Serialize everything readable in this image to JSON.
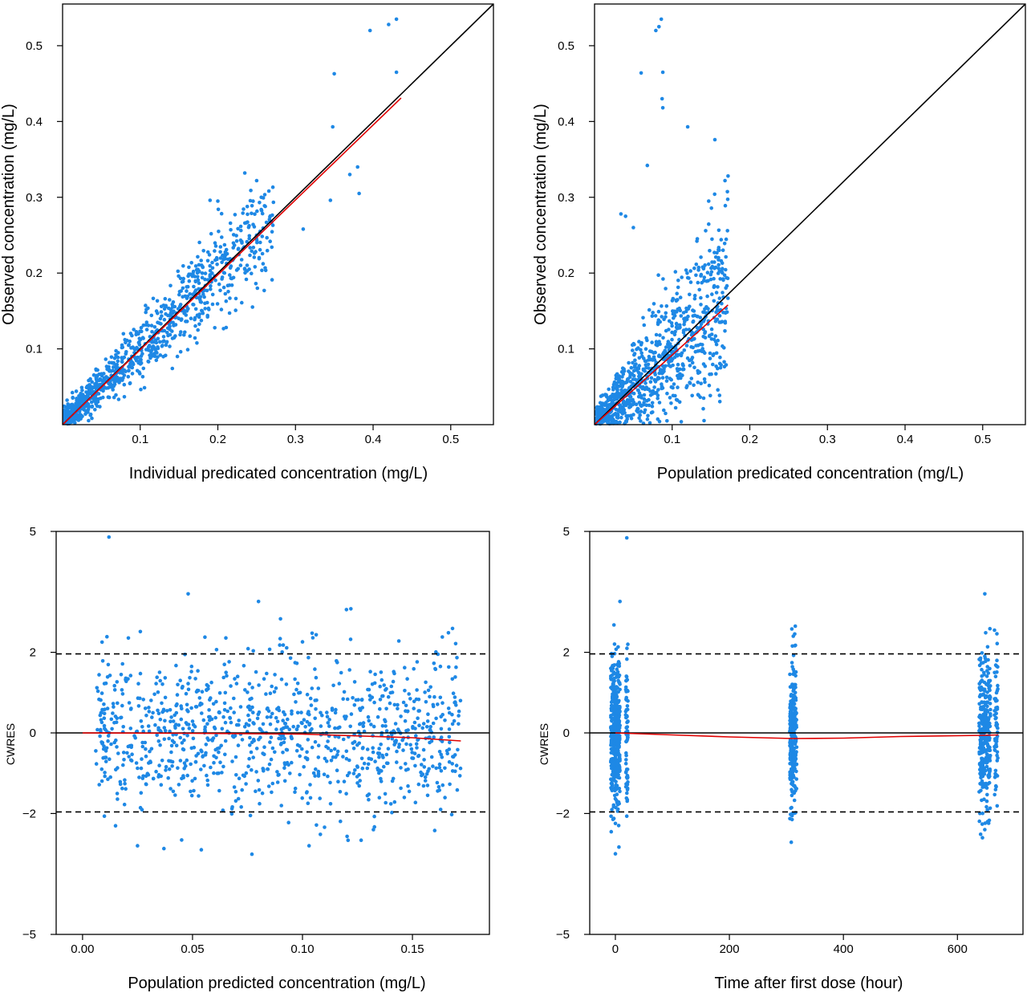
{
  "colors": {
    "points": "#1e88e5",
    "fit": "#e00000",
    "reference": "#000000"
  },
  "chart_data": [
    {
      "type": "scatter",
      "xlabel": "Individual predicated concentration (mg/L)",
      "ylabel": "Observed concentration (mg/L)",
      "xlim": [
        0,
        0.555
      ],
      "ylim": [
        0,
        0.555
      ],
      "xticks": [
        0.1,
        0.2,
        0.3,
        0.4,
        0.5
      ],
      "xticklabels": [
        "0.1",
        "0.2",
        "0.3",
        "0.4",
        "0.5"
      ],
      "yticks": [
        0.1,
        0.2,
        0.3,
        0.4,
        0.5
      ],
      "yticklabels": [
        "0.1",
        "0.2",
        "0.3",
        "0.4",
        "0.5"
      ],
      "reference_line": "identity",
      "trend": {
        "x": [
          0.0,
          0.436
        ],
        "y": [
          0.0,
          0.431
        ]
      },
      "outliers": [
        {
          "x": 0.35,
          "y": 0.463
        },
        {
          "x": 0.348,
          "y": 0.393
        },
        {
          "x": 0.396,
          "y": 0.52
        },
        {
          "x": 0.42,
          "y": 0.528
        },
        {
          "x": 0.43,
          "y": 0.535
        },
        {
          "x": 0.43,
          "y": 0.465
        },
        {
          "x": 0.345,
          "y": 0.296
        },
        {
          "x": 0.382,
          "y": 0.305
        },
        {
          "x": 0.37,
          "y": 0.33
        },
        {
          "x": 0.38,
          "y": 0.34
        },
        {
          "x": 0.31,
          "y": 0.258
        },
        {
          "x": 0.25,
          "y": 0.322
        },
        {
          "x": 0.256,
          "y": 0.3
        },
        {
          "x": 0.19,
          "y": 0.296
        },
        {
          "x": 0.2,
          "y": 0.295
        }
      ]
    },
    {
      "type": "scatter",
      "xlabel": "Population predicated concentration (mg/L)",
      "ylabel": "Observed concentration (mg/L)",
      "xlim": [
        0,
        0.555
      ],
      "ylim": [
        0,
        0.555
      ],
      "xticks": [
        0.1,
        0.2,
        0.3,
        0.4,
        0.5
      ],
      "xticklabels": [
        "0.1",
        "0.2",
        "0.3",
        "0.4",
        "0.5"
      ],
      "yticks": [
        0.1,
        0.2,
        0.3,
        0.4,
        0.5
      ],
      "yticklabels": [
        "0.1",
        "0.2",
        "0.3",
        "0.4",
        "0.5"
      ],
      "reference_line": "identity",
      "trend": {
        "x": [
          0.0,
          0.172
        ],
        "y": [
          0.0,
          0.158
        ]
      },
      "outliers": [
        {
          "x": 0.086,
          "y": 0.535
        },
        {
          "x": 0.083,
          "y": 0.525
        },
        {
          "x": 0.079,
          "y": 0.52
        },
        {
          "x": 0.06,
          "y": 0.464
        },
        {
          "x": 0.088,
          "y": 0.465
        },
        {
          "x": 0.087,
          "y": 0.43
        },
        {
          "x": 0.088,
          "y": 0.418
        },
        {
          "x": 0.12,
          "y": 0.393
        },
        {
          "x": 0.155,
          "y": 0.376
        },
        {
          "x": 0.068,
          "y": 0.342
        },
        {
          "x": 0.172,
          "y": 0.328
        },
        {
          "x": 0.168,
          "y": 0.322
        },
        {
          "x": 0.034,
          "y": 0.278
        },
        {
          "x": 0.04,
          "y": 0.275
        },
        {
          "x": 0.05,
          "y": 0.26
        }
      ]
    },
    {
      "type": "scatter",
      "xlabel": "Population predicted concentration (mg/L)",
      "ylabel": "CWRES",
      "xlim": [
        -0.012,
        0.185
      ],
      "ylim": [
        -5,
        5
      ],
      "xticks": [
        0.0,
        0.05,
        0.1,
        0.15
      ],
      "xticklabels": [
        "0.00",
        "0.05",
        "0.10",
        "0.15"
      ],
      "yticks": [
        -5,
        -2,
        0,
        2,
        5
      ],
      "yticklabels": [
        "−5",
        "−2",
        "0",
        "2",
        "5"
      ],
      "hlines_solid": [
        0
      ],
      "hlines_dashed": [
        -1.96,
        1.96
      ],
      "trend": {
        "x": [
          0.0,
          0.05,
          0.1,
          0.15,
          0.172
        ],
        "y": [
          0.0,
          -0.01,
          -0.03,
          -0.12,
          -0.2
        ]
      },
      "outliers": [
        {
          "x": 0.012,
          "y": 4.86
        },
        {
          "x": 0.048,
          "y": 3.45
        },
        {
          "x": 0.08,
          "y": 3.26
        },
        {
          "x": 0.12,
          "y": 3.06
        },
        {
          "x": 0.122,
          "y": 3.08
        },
        {
          "x": 0.09,
          "y": 2.83
        },
        {
          "x": 0.077,
          "y": -3.01
        },
        {
          "x": 0.025,
          "y": -2.8
        },
        {
          "x": 0.054,
          "y": -2.9
        },
        {
          "x": 0.103,
          "y": -2.8
        },
        {
          "x": 0.037,
          "y": -2.87
        }
      ]
    },
    {
      "type": "scatter",
      "xlabel": "Time after first dose (hour)",
      "ylabel": "CWRES",
      "xlim": [
        -45,
        715
      ],
      "ylim": [
        -5,
        5
      ],
      "xticks": [
        0,
        200,
        400,
        600
      ],
      "xticklabels": [
        "0",
        "200",
        "400",
        "600"
      ],
      "yticks": [
        -5,
        -2,
        0,
        2,
        5
      ],
      "yticklabels": [
        "−5",
        "−2",
        "0",
        "2",
        "5"
      ],
      "hlines_solid": [
        0
      ],
      "hlines_dashed": [
        -1.96,
        1.96
      ],
      "trend": {
        "x": [
          0,
          100,
          200,
          312,
          400,
          500,
          648,
          672
        ],
        "y": [
          0.0,
          -0.05,
          -0.1,
          -0.14,
          -0.13,
          -0.09,
          -0.06,
          -0.05
        ]
      },
      "outliers": [
        {
          "x": 20,
          "y": 4.84
        },
        {
          "x": 8,
          "y": 3.26
        },
        {
          "x": 648,
          "y": 3.45
        },
        {
          "x": 0,
          "y": -3.0
        },
        {
          "x": 310,
          "y": -2.15
        },
        {
          "x": 648,
          "y": -2.4
        },
        {
          "x": 312,
          "y": 2.4
        },
        {
          "x": 665,
          "y": 2.55
        }
      ]
    }
  ]
}
